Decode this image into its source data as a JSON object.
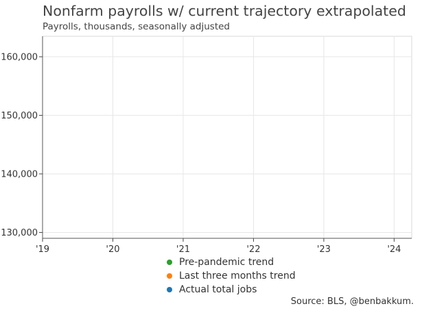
{
  "title": "Nonfarm payrolls w/ current trajectory extrapolated",
  "subtitle": "Payrolls, thousands, seasonally adjusted",
  "source": "Source: BLS, @benbakkum.",
  "chart_data": {
    "type": "line",
    "x_tick_labels": [
      "'19",
      "'20",
      "'21",
      "'22",
      "'23",
      "'24"
    ],
    "x_ticks": [
      2019,
      2020,
      2021,
      2022,
      2023,
      2024
    ],
    "xlim": [
      2019,
      2024.25
    ],
    "y_ticks": [
      130000,
      140000,
      150000,
      160000
    ],
    "y_tick_labels": [
      "130,000",
      "140,000",
      "150,000",
      "160,000"
    ],
    "ylim": [
      129000,
      163500
    ],
    "grid": true,
    "legend_position": "bottom-center",
    "series": [
      {
        "name": "Pre-pandemic trend",
        "color": "#2ca02c",
        "values": []
      },
      {
        "name": "Last three months trend",
        "color": "#ff7f0e",
        "values": []
      },
      {
        "name": "Actual total jobs",
        "color": "#1f77b4",
        "values": []
      }
    ]
  }
}
